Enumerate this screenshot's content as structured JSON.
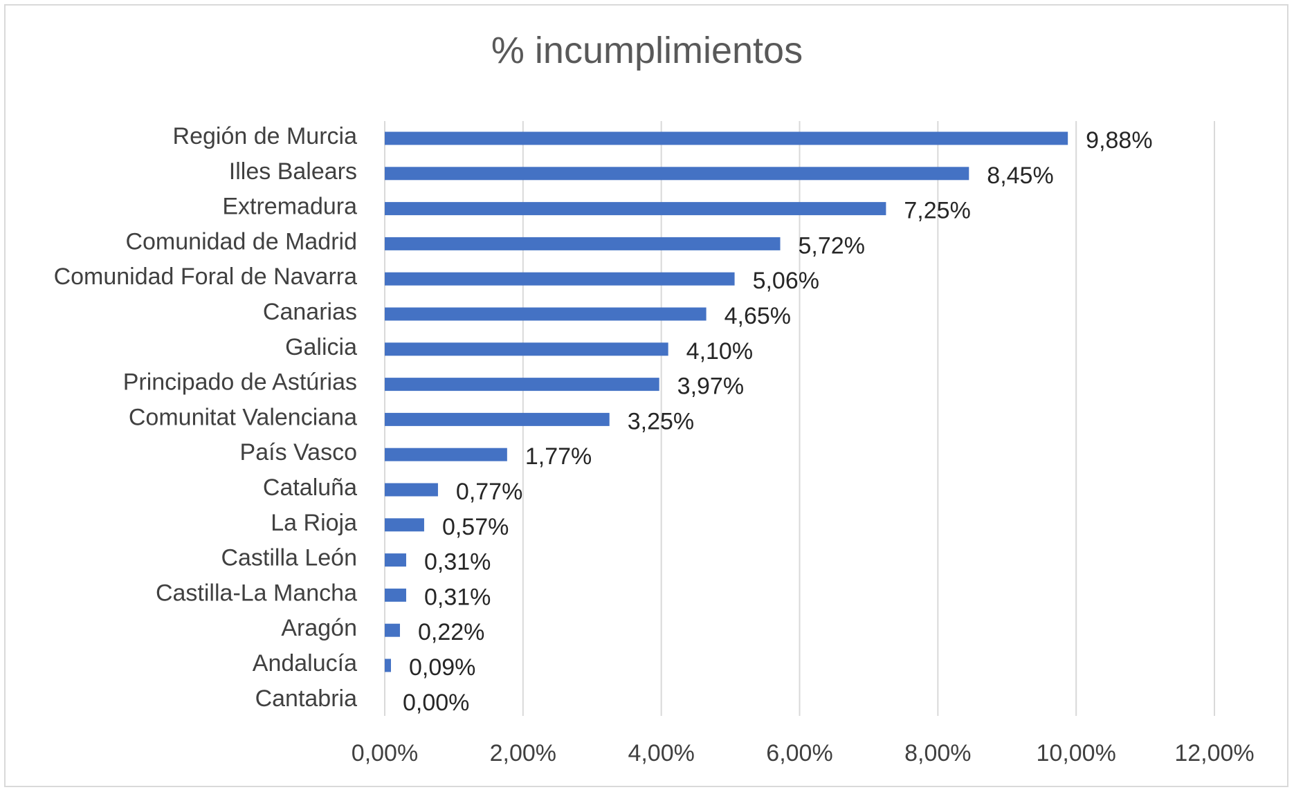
{
  "chart_data": {
    "type": "bar",
    "orientation": "horizontal",
    "title": "% incumplimientos",
    "xlabel": "",
    "ylabel": "",
    "categories": [
      "Región de Murcia",
      "Illes Balears",
      "Extremadura",
      "Comunidad de Madrid",
      "Comunidad Foral de Navarra",
      "Canarias",
      "Galicia",
      "Principado de Astúrias",
      "Comunitat Valenciana",
      "País Vasco",
      "Cataluña",
      "La Rioja",
      "Castilla León",
      "Castilla-La Mancha",
      "Aragón",
      "Andalucía",
      "Cantabria"
    ],
    "values": [
      9.88,
      8.45,
      7.25,
      5.72,
      5.06,
      4.65,
      4.1,
      3.97,
      3.25,
      1.77,
      0.77,
      0.57,
      0.31,
      0.31,
      0.22,
      0.09,
      0.0
    ],
    "data_labels": [
      "9,88%",
      "8,45%",
      "7,25%",
      "5,72%",
      "5,06%",
      "4,65%",
      "4,10%",
      "3,97%",
      "3,25%",
      "1,77%",
      "0,77%",
      "0,57%",
      "0,31%",
      "0,31%",
      "0,22%",
      "0,09%",
      "0,00%"
    ],
    "xlim": [
      0,
      12
    ],
    "x_ticks": [
      0,
      2,
      4,
      6,
      8,
      10,
      12
    ],
    "x_tick_labels": [
      "0,00%",
      "2,00%",
      "4,00%",
      "6,00%",
      "8,00%",
      "10,00%",
      "12,00%"
    ],
    "grid": "vertical",
    "legend": "none",
    "colors": {
      "bar": "#4472C4",
      "grid": "#d9d9d9",
      "title": "#595959",
      "text": "#404040"
    }
  }
}
